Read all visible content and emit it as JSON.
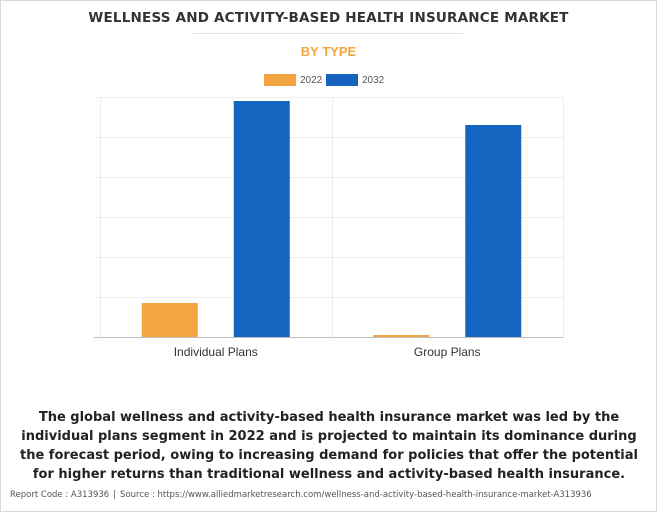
{
  "header": {
    "title": "WELLNESS AND ACTIVITY-BASED HEALTH INSURANCE MARKET",
    "subtitle": "BY TYPE"
  },
  "legend": {
    "items": [
      {
        "label": "2022",
        "color": "#f2a541"
      },
      {
        "label": "2032",
        "color": "#1565c0"
      }
    ]
  },
  "chart_data": {
    "type": "bar",
    "title": "WELLNESS AND ACTIVITY-BASED HEALTH INSURANCE MARKET",
    "subtitle": "BY TYPE",
    "categories": [
      "Individual Plans",
      "Group Plans"
    ],
    "series": [
      {
        "name": "2022",
        "color": "#f2a541",
        "values": [
          0.85,
          0.05
        ]
      },
      {
        "name": "2032",
        "color": "#1565c0",
        "values": [
          5.9,
          5.3
        ]
      }
    ],
    "xlabel": "",
    "ylabel": "",
    "ylim": [
      0,
      6
    ],
    "y_ticks_labeled": false,
    "grid": true,
    "legend_position": "top-center"
  },
  "description": "The global wellness and activity-based health insurance market was led by the individual plans segment in 2022 and is projected to maintain its dominance during the forecast period, owing to increasing demand for policies that offer the potential for higher returns than traditional wellness and activity-based health insurance.",
  "footer": {
    "report_code": "Report Code : A313936",
    "separator": "|",
    "source": "Source : https://www.alliedmarketresearch.com/wellness-and-activity-based-health-insurance-market-A313936"
  }
}
